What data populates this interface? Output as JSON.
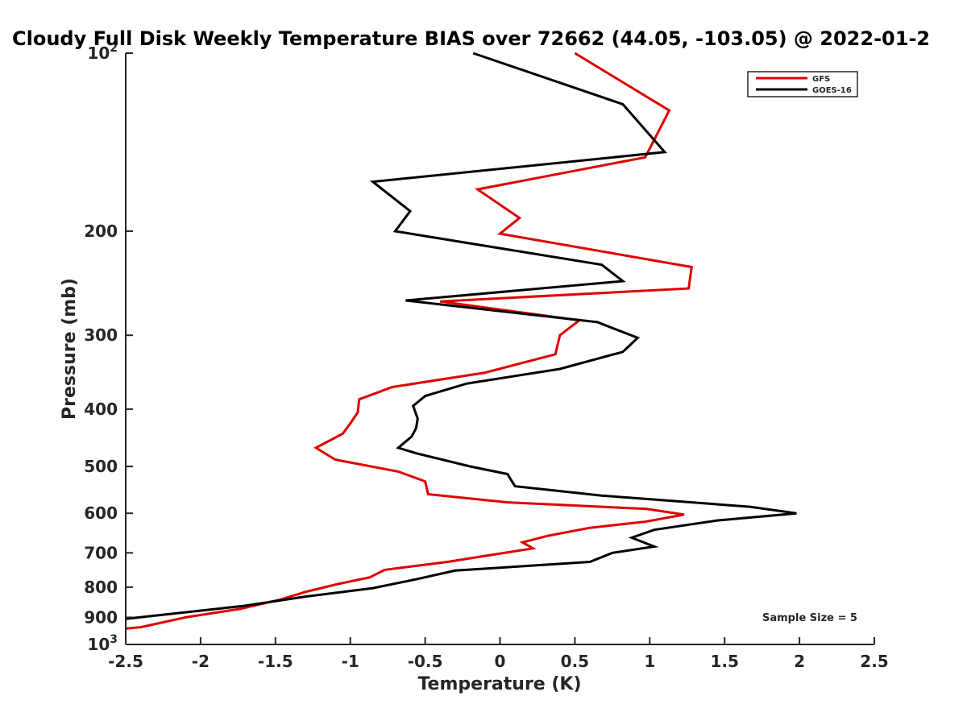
{
  "chart_data": {
    "type": "line",
    "title": "Cloudy Full Disk Weekly Temperature BIAS over 72662 (44.05, -103.05) @ 2022-01-2",
    "xlabel": "Temperature (K)",
    "ylabel": "Pressure (mb)",
    "xlim": [
      -2.5,
      2.5
    ],
    "ylim": [
      100,
      1000
    ],
    "yscale": "log",
    "y_reversed": true,
    "grid": false,
    "legend_position": "top-right",
    "x_ticks": [
      "-2.5",
      "-2",
      "-1.5",
      "-1",
      "-0.5",
      "0",
      "0.5",
      "1",
      "1.5",
      "2",
      "2.5"
    ],
    "y_ticks": [
      {
        "value": 100,
        "base": "10",
        "exp": "2"
      },
      {
        "value": 200,
        "label": "200"
      },
      {
        "value": 300,
        "label": "300"
      },
      {
        "value": 400,
        "label": "400"
      },
      {
        "value": 500,
        "label": "500"
      },
      {
        "value": 600,
        "label": "600"
      },
      {
        "value": 700,
        "label": "700"
      },
      {
        "value": 800,
        "label": "800"
      },
      {
        "value": 900,
        "label": "900"
      },
      {
        "value": 1000,
        "base": "10",
        "exp": "3"
      }
    ],
    "annotation": "Sample Size = 5",
    "series": [
      {
        "name": "GFS",
        "color": "#e00000",
        "points": [
          [
            0.5,
            100
          ],
          [
            1.13,
            125
          ],
          [
            0.97,
            150
          ],
          [
            -0.15,
            170
          ],
          [
            0.13,
            190
          ],
          [
            0.0,
            202
          ],
          [
            1.28,
            230
          ],
          [
            1.26,
            250
          ],
          [
            -0.4,
            263
          ],
          [
            0.53,
            283
          ],
          [
            0.4,
            300
          ],
          [
            0.37,
            323
          ],
          [
            -0.1,
            347
          ],
          [
            -0.72,
            367
          ],
          [
            -0.94,
            385
          ],
          [
            -0.95,
            405
          ],
          [
            -1.0,
            423
          ],
          [
            -1.05,
            440
          ],
          [
            -1.23,
            465
          ],
          [
            -1.1,
            487
          ],
          [
            -0.68,
            510
          ],
          [
            -0.5,
            530
          ],
          [
            -0.48,
            557
          ],
          [
            0.05,
            575
          ],
          [
            0.98,
            590
          ],
          [
            1.23,
            603
          ],
          [
            0.97,
            620
          ],
          [
            0.6,
            635
          ],
          [
            0.32,
            655
          ],
          [
            0.15,
            672
          ],
          [
            0.22,
            688
          ],
          [
            -0.05,
            705
          ],
          [
            -0.35,
            725
          ],
          [
            -0.77,
            748
          ],
          [
            -0.87,
            770
          ],
          [
            -1.08,
            790
          ],
          [
            -1.3,
            815
          ],
          [
            -1.47,
            840
          ],
          [
            -1.73,
            870
          ],
          [
            -2.1,
            900
          ],
          [
            -2.4,
            935
          ],
          [
            -2.5,
            940
          ]
        ]
      },
      {
        "name": "GOES-16",
        "color": "#000000",
        "points": [
          [
            -0.18,
            100
          ],
          [
            0.82,
            122
          ],
          [
            1.1,
            147
          ],
          [
            -0.85,
            165
          ],
          [
            -0.6,
            185
          ],
          [
            -0.7,
            200
          ],
          [
            0.68,
            228
          ],
          [
            0.82,
            243
          ],
          [
            -0.63,
            262
          ],
          [
            0.65,
            285
          ],
          [
            0.92,
            303
          ],
          [
            0.82,
            320
          ],
          [
            0.4,
            342
          ],
          [
            -0.22,
            362
          ],
          [
            -0.5,
            380
          ],
          [
            -0.58,
            395
          ],
          [
            -0.55,
            415
          ],
          [
            -0.56,
            430
          ],
          [
            -0.59,
            445
          ],
          [
            -0.68,
            465
          ],
          [
            -0.56,
            475
          ],
          [
            -0.2,
            500
          ],
          [
            0.05,
            515
          ],
          [
            0.07,
            525
          ],
          [
            0.1,
            540
          ],
          [
            0.68,
            560
          ],
          [
            1.67,
            585
          ],
          [
            1.98,
            600
          ],
          [
            1.45,
            617
          ],
          [
            1.03,
            640
          ],
          [
            0.88,
            660
          ],
          [
            1.03,
            683
          ],
          [
            0.75,
            700
          ],
          [
            0.6,
            725
          ],
          [
            -0.3,
            750
          ],
          [
            -0.55,
            775
          ],
          [
            -0.85,
            803
          ],
          [
            -1.3,
            830
          ],
          [
            -1.7,
            860
          ],
          [
            -2.5,
            905
          ]
        ]
      }
    ]
  }
}
